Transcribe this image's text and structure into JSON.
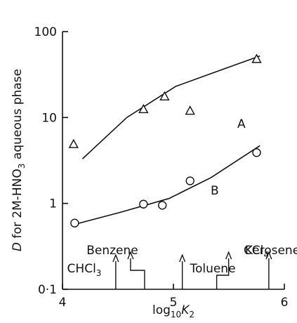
{
  "chart_data": {
    "type": "scatter",
    "y_label": {
      "parts": [
        "D",
        " for 2M-HNO",
        "3",
        " aqueous phase"
      ]
    },
    "x_label": {
      "parts": [
        "log",
        "10",
        "K",
        "2"
      ]
    },
    "log_y": true,
    "xlim": [
      4,
      6
    ],
    "xticks": [
      4,
      5,
      6
    ],
    "ylim": [
      0.1,
      100
    ],
    "yticks": [
      {
        "value": 0.1,
        "label": "0·1"
      },
      1,
      10,
      100
    ],
    "series": [
      {
        "name": "A",
        "marker": "triangle",
        "color": "#111",
        "x": [
          4.1,
          4.73,
          4.92,
          5.15,
          5.75
        ],
        "values": [
          4.9,
          12.5,
          17.6,
          12,
          48
        ],
        "curve_x": [
          4.18,
          4.58,
          5.02,
          5.46,
          5.78
        ],
        "curve_values": [
          3.3,
          10,
          23,
          37,
          52
        ]
      },
      {
        "name": "B",
        "marker": "circle",
        "color": "#111",
        "x": [
          4.11,
          4.73,
          4.9,
          5.15,
          5.75
        ],
        "values": [
          0.59,
          0.98,
          0.95,
          1.83,
          3.9
        ],
        "curve_x": [
          4.11,
          4.51,
          4.96,
          5.34,
          5.78
        ],
        "curve_values": [
          0.57,
          0.78,
          1.14,
          2.0,
          4.7
        ]
      }
    ],
    "solvents": [
      {
        "label": "CHCl",
        "sub": "3",
        "x": 4.48
      },
      {
        "label": "Benzene",
        "sub": null,
        "x": 4.74
      },
      {
        "label": "Toluene",
        "sub": null,
        "x": 5.08
      },
      {
        "label": "CCl",
        "sub": "4",
        "x": 5.39
      },
      {
        "label": "Kerosene",
        "sub": null,
        "x": 5.86
      }
    ]
  }
}
